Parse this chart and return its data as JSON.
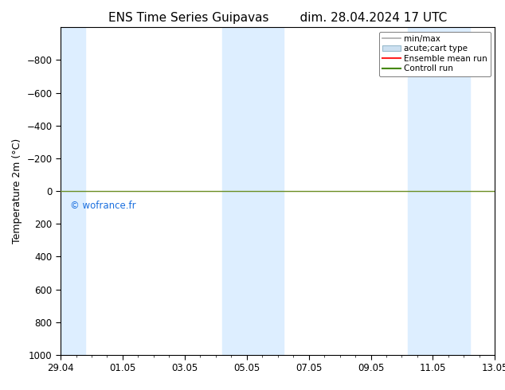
{
  "title_left": "ENS Time Series Guipavas",
  "title_right": "dim. 28.04.2024 17 UTC",
  "ylabel": "Temperature 2m (°C)",
  "ylim": [
    -1000,
    1000
  ],
  "yticks": [
    -800,
    -600,
    -400,
    -200,
    0,
    200,
    400,
    600,
    800,
    1000
  ],
  "xtick_positions": [
    0,
    2,
    4,
    6,
    8,
    10,
    12,
    14
  ],
  "xtick_labels": [
    "29.04",
    "01.05",
    "03.05",
    "05.05",
    "07.05",
    "09.05",
    "11.05",
    "13.05"
  ],
  "shaded_bands": [
    {
      "x_start": 0.0,
      "x_end": 0.8,
      "color": "#ddeeff"
    },
    {
      "x_start": 5.2,
      "x_end": 7.2,
      "color": "#ddeeff"
    },
    {
      "x_start": 11.2,
      "x_end": 13.2,
      "color": "#ddeeff"
    }
  ],
  "horizontal_line_y": 0,
  "horizontal_line_color": "#6b8e23",
  "watermark_text": "© wofrance.fr",
  "watermark_color": "#1a6fdf",
  "legend_minmax_color": "#aaaaaa",
  "legend_acute_color": "#cce0f0",
  "legend_ensemble_color": "#ff2222",
  "legend_control_color": "#448800",
  "background_color": "#ffffff",
  "plot_bg_color": "#ffffff",
  "title_fontsize": 11,
  "axis_fontsize": 9,
  "tick_fontsize": 8.5
}
